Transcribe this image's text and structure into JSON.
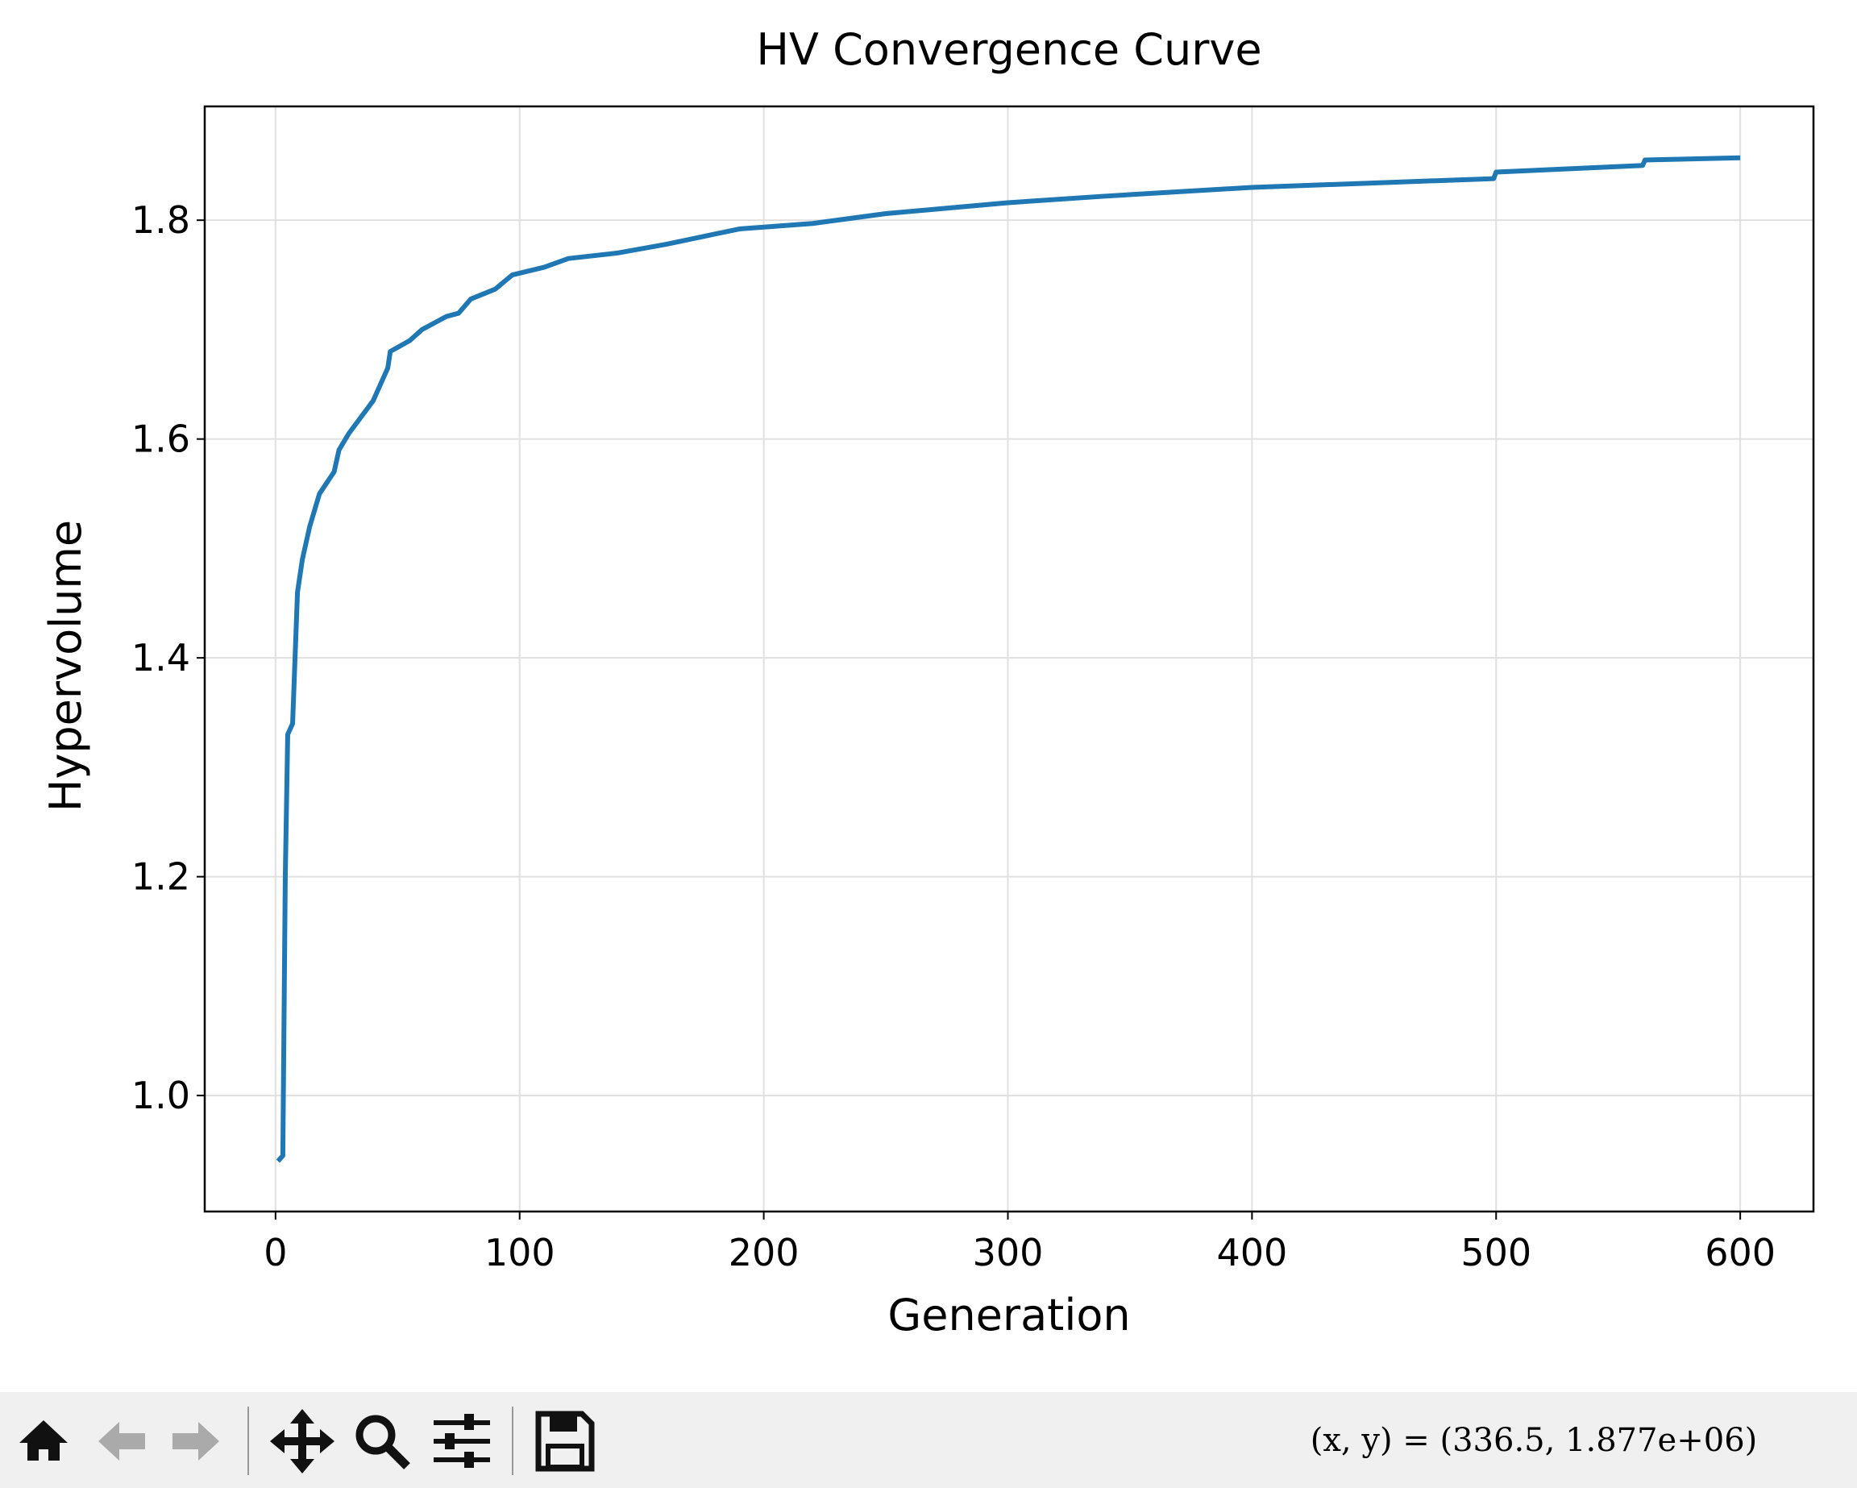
{
  "chart_data": {
    "type": "line",
    "title": "HV Convergence Curve",
    "x_label": "Generation",
    "y_label": "Hypervolume",
    "x": [
      1,
      3,
      4,
      5,
      7,
      8,
      9,
      11,
      14,
      18,
      24,
      26,
      30,
      35,
      40,
      42,
      46,
      47,
      55,
      60,
      70,
      75,
      80,
      90,
      97,
      110,
      120,
      140,
      160,
      175,
      190,
      220,
      250,
      270,
      300,
      340,
      400,
      450,
      499,
      500,
      520,
      560,
      561,
      600
    ],
    "series": [
      {
        "name": "HV",
        "color": "#1f77b4",
        "values": [
          0.94,
          0.945,
          1.2,
          1.33,
          1.34,
          1.4,
          1.46,
          1.49,
          1.52,
          1.55,
          1.57,
          1.59,
          1.605,
          1.62,
          1.635,
          1.645,
          1.665,
          1.68,
          1.69,
          1.7,
          1.712,
          1.715,
          1.728,
          1.737,
          1.75,
          1.757,
          1.765,
          1.77,
          1.778,
          1.785,
          1.792,
          1.797,
          1.806,
          1.81,
          1.816,
          1.822,
          1.83,
          1.834,
          1.838,
          1.844,
          1.846,
          1.85,
          1.855,
          1.857
        ]
      }
    ],
    "xlim": [
      -29,
      630
    ],
    "ylim": [
      0.894,
      1.904
    ],
    "xticks": [
      0,
      100,
      200,
      300,
      400,
      500,
      600
    ],
    "yticks": [
      {
        "value": 1.0,
        "label": "1.0"
      },
      {
        "value": 1.2,
        "label": "1.2"
      },
      {
        "value": 1.4,
        "label": "1.4"
      },
      {
        "value": 1.6,
        "label": "1.6"
      },
      {
        "value": 1.8,
        "label": "1.8"
      }
    ],
    "grid": true
  },
  "toolbar": {
    "coords": "(x,  y)  =  (336.5,  1.877e+06)"
  }
}
